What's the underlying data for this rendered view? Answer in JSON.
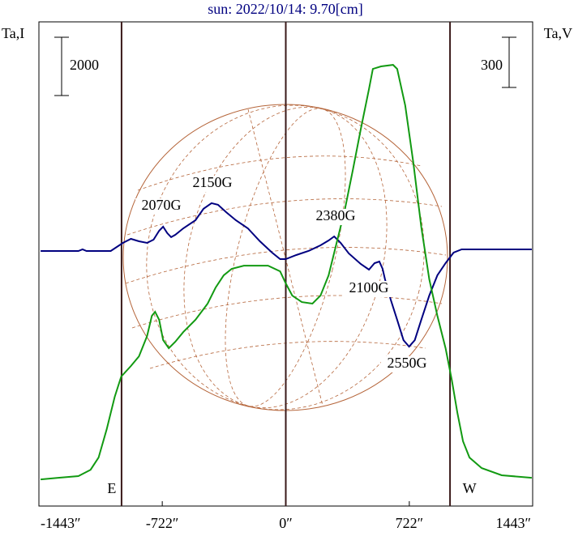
{
  "chart_data": {
    "type": "line",
    "title": "sun: 2022/10/14: 9.70[cm]",
    "ylabel": "Ta,I",
    "y2label": "Ta,V",
    "xlim": [
      -1443,
      1443
    ],
    "xticks": [
      {
        "value": -1443,
        "label": "-1443″"
      },
      {
        "value": -722,
        "label": "-722″"
      },
      {
        "value": 0,
        "label": "0″"
      },
      {
        "value": 722,
        "label": "722″"
      },
      {
        "value": 1443,
        "label": "1443″"
      }
    ],
    "ylim": [
      -8750,
      7860
    ],
    "y2lim": [
      -169,
      2725
    ],
    "scale_bars": [
      {
        "value": 2000,
        "axis": "y"
      },
      {
        "value": 300,
        "axis": "y2"
      }
    ],
    "limbs": [
      {
        "value": -960,
        "label": "E"
      },
      {
        "value": 960,
        "label": "W"
      }
    ],
    "annotations": [
      "2070G",
      "2150G",
      "2380G",
      "2100G",
      "2550G"
    ],
    "series": [
      {
        "name": "Ta,I",
        "color": "#000080",
        "x": [
          -1433,
          -1212,
          -1188,
          -1165,
          -1023,
          -952,
          -905,
          -858,
          -811,
          -773,
          -740,
          -717,
          -693,
          -670,
          -646,
          -599,
          -528,
          -481,
          -434,
          -396,
          -349,
          -292,
          -222,
          -151,
          -80,
          -33,
          0,
          61,
          132,
          203,
          250,
          283,
          321,
          368,
          438,
          486,
          519,
          547,
          566,
          580,
          613,
          651,
          688,
          721,
          754,
          792,
          839,
          886,
          934,
          981,
          1028,
          1438
        ],
        "values": [
          0,
          0,
          56,
          0,
          0,
          278,
          417,
          334,
          278,
          389,
          695,
          834,
          612,
          473,
          556,
          778,
          1056,
          1446,
          1640,
          1585,
          1334,
          1056,
          778,
          334,
          -56,
          -278,
          -278,
          -139,
          0,
          195,
          361,
          500,
          278,
          -83,
          -445,
          -639,
          -417,
          -361,
          -612,
          -973,
          -1668,
          -2363,
          -3058,
          -3280,
          -3058,
          -2363,
          -1529,
          -834,
          -417,
          -56,
          56,
          56
        ]
      },
      {
        "name": "Ta,V",
        "color": "#129a12",
        "axis": "y2",
        "x": [
          -1433,
          -1330,
          -1212,
          -1141,
          -1094,
          -1047,
          -1000,
          -962,
          -905,
          -858,
          -811,
          -783,
          -764,
          -740,
          -717,
          -684,
          -646,
          -599,
          -528,
          -457,
          -410,
          -363,
          -316,
          -245,
          -104,
          -33,
          0,
          38,
          94,
          156,
          203,
          250,
          297,
          344,
          392,
          438,
          486,
          509,
          557,
          627,
          651,
          698,
          745,
          792,
          839,
          886,
          934,
          971,
          1003,
          1036,
          1074,
          1145,
          1262,
          1438
        ],
        "values": [
          -10,
          0,
          10,
          48,
          121,
          290,
          484,
          605,
          668,
          726,
          847,
          968,
          992,
          944,
          823,
          774,
          813,
          871,
          944,
          1041,
          1137,
          1210,
          1249,
          1268,
          1268,
          1234,
          1162,
          1089,
          1050,
          1041,
          1089,
          1210,
          1404,
          1597,
          1839,
          2081,
          2323,
          2444,
          2459,
          2468,
          2444,
          2226,
          1888,
          1500,
          1186,
          968,
          774,
          581,
          387,
          218,
          121,
          58,
          15,
          0
        ]
      }
    ]
  }
}
